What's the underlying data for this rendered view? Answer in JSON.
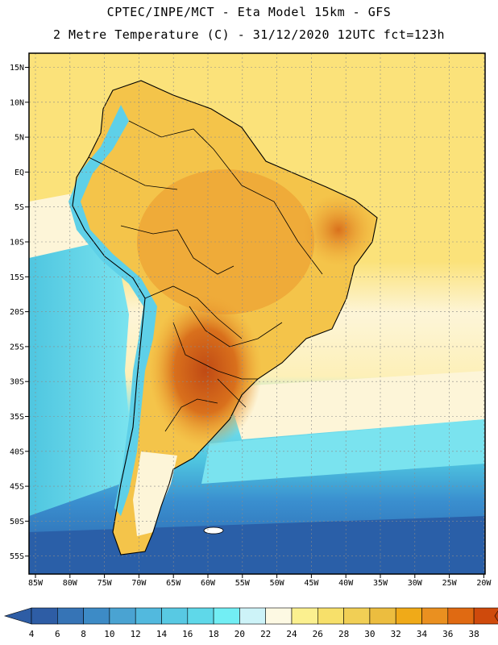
{
  "header": {
    "line1": "CPTEC/INPE/MCT -  Eta Model 15km - GFS",
    "line2": "2 Metre Temperature (C) - 31/12/2020 12UTC fct=123h"
  },
  "map": {
    "lat_labels": [
      "15N",
      "10N",
      "5N",
      "EQ",
      "5S",
      "10S",
      "15S",
      "20S",
      "25S",
      "30S",
      "35S",
      "40S",
      "45S",
      "50S",
      "55S"
    ],
    "lon_labels": [
      "85W",
      "80W",
      "75W",
      "70W",
      "65W",
      "60W",
      "55W",
      "50W",
      "45W",
      "40W",
      "35W",
      "30W",
      "25W",
      "20W"
    ],
    "colors": {
      "ocean_cold": "#2a5fa8",
      "ocean_mid": "#3a8fcf",
      "ocean_cool": "#4fc6e0",
      "ocean_warm": "#7ae3ef",
      "pale": "#fdf5d8",
      "yellow": "#fbe27a",
      "gold": "#f4c44a",
      "orange": "#eea535",
      "hot": "#d9701c",
      "hottest": "#c04a14",
      "andes_cool": "#5ed0e8",
      "frame": "#000000"
    }
  },
  "colorbar": {
    "labels": [
      "4",
      "6",
      "8",
      "10",
      "12",
      "14",
      "16",
      "18",
      "20",
      "22",
      "24",
      "26",
      "28",
      "30",
      "32",
      "34",
      "36",
      "38"
    ],
    "colors": [
      "#2e5da5",
      "#3674b6",
      "#3d8bc6",
      "#4aa3d2",
      "#52b9de",
      "#58c9e3",
      "#5fd8e9",
      "#72eef4",
      "#cdf3f8",
      "#fdf9e3",
      "#fbf08f",
      "#f7e06a",
      "#f1cf55",
      "#ecbd3f",
      "#f0aa18",
      "#ea9020",
      "#e06a12",
      "#cf4a0c"
    ],
    "low_end_color": "#2e5da5",
    "high_end_color": "#c4400a"
  }
}
